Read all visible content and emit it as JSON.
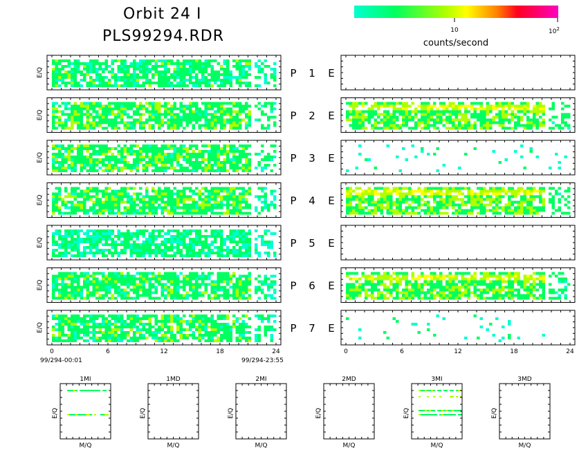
{
  "header": {
    "title_line1": "Orbit 24 I",
    "title_line2": "PLS99294.RDR"
  },
  "colorbar": {
    "label": "counts/second",
    "tick_10": "10",
    "tick_100_base": "10",
    "tick_100_exp": "2",
    "colors": [
      "#00ffd0",
      "#00ff60",
      "#b0ff00",
      "#ffff00",
      "#ff8000",
      "#ff0020",
      "#ff00c0"
    ]
  },
  "chart_data": {
    "type": "heatmap",
    "title": "Orbit 24 I",
    "subtitle": "PLS99294.RDR",
    "colorbar_label": "counts/second",
    "color_scale": "log",
    "color_range": [
      1,
      100
    ],
    "ylabel": "E/Q",
    "x_ticks": [
      "0",
      "6",
      "12",
      "18",
      "24"
    ],
    "xlim": [
      0,
      24
    ],
    "start_label": "99/294-00:01",
    "end_label": "99/294-23:55",
    "rows": [
      {
        "label": "P",
        "index": "1",
        "right_label": "E",
        "left_level": 0.35,
        "right_level": 0.0
      },
      {
        "label": "P",
        "index": "2",
        "right_label": "E",
        "left_level": 0.45,
        "right_level": 0.55
      },
      {
        "label": "P",
        "index": "3",
        "right_label": "E",
        "left_level": 0.45,
        "right_level": 0.03
      },
      {
        "label": "P",
        "index": "4",
        "right_label": "E",
        "left_level": 0.45,
        "right_level": 0.6
      },
      {
        "label": "P",
        "index": "5",
        "right_label": "E",
        "left_level": 0.25,
        "right_level": 0.0
      },
      {
        "label": "P",
        "index": "6",
        "right_label": "E",
        "left_level": 0.4,
        "right_level": 0.55
      },
      {
        "label": "P",
        "index": "7",
        "right_label": "E",
        "left_level": 0.4,
        "right_level": 0.08
      }
    ],
    "small_panels": [
      {
        "title": "1MI",
        "xlabel": "M/Q",
        "ylabel": "E/Q",
        "has_data": true
      },
      {
        "title": "1MD",
        "xlabel": "M/Q",
        "ylabel": "E/Q",
        "has_data": false
      },
      {
        "title": "2MI",
        "xlabel": "M/Q",
        "ylabel": "E/Q",
        "has_data": false
      },
      {
        "title": "2MD",
        "xlabel": "M/Q",
        "ylabel": "E/Q",
        "has_data": false
      },
      {
        "title": "3MI",
        "xlabel": "M/Q",
        "ylabel": "E/Q",
        "has_data": true
      },
      {
        "title": "3MD",
        "xlabel": "M/Q",
        "ylabel": "E/Q",
        "has_data": false
      }
    ]
  }
}
